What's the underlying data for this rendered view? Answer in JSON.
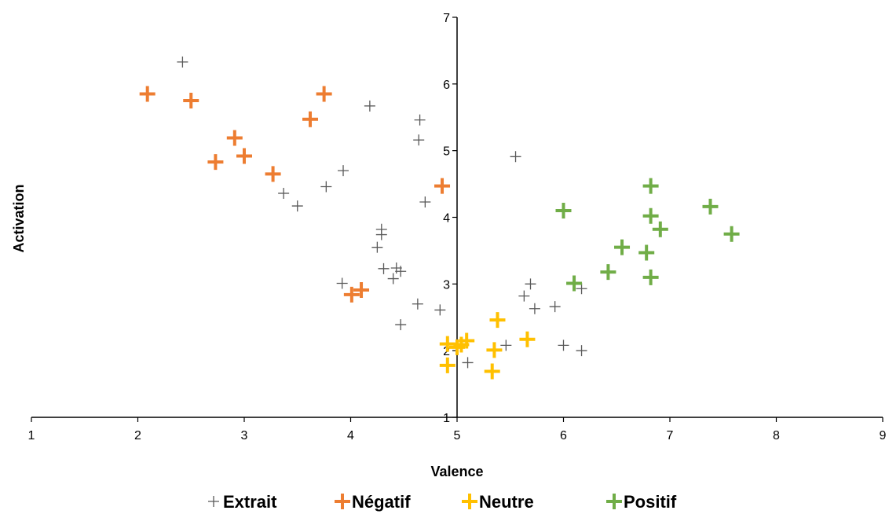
{
  "chart_data": {
    "type": "scatter",
    "title": "",
    "xlabel": "Valence",
    "ylabel": "Activation",
    "xlim": [
      1,
      9
    ],
    "ylim": [
      1,
      7
    ],
    "x_ticks": [
      "1",
      "2",
      "3",
      "4",
      "5",
      "6",
      "7",
      "8",
      "9"
    ],
    "y_ticks": [
      "1",
      "2",
      "3",
      "4",
      "5",
      "6",
      "7"
    ],
    "grid": false,
    "legend_position": "bottom",
    "series": [
      {
        "name": "Extrait",
        "color": "#595959",
        "marker": "thin-plus",
        "points": [
          [
            2.42,
            6.33
          ],
          [
            4.18,
            5.67
          ],
          [
            4.65,
            5.46
          ],
          [
            4.64,
            5.16
          ],
          [
            5.55,
            4.91
          ],
          [
            3.93,
            4.7
          ],
          [
            3.37,
            4.36
          ],
          [
            3.77,
            4.46
          ],
          [
            3.5,
            4.17
          ],
          [
            4.7,
            4.23
          ],
          [
            4.29,
            3.82
          ],
          [
            4.29,
            3.74
          ],
          [
            4.25,
            3.55
          ],
          [
            4.31,
            3.23
          ],
          [
            4.43,
            3.24
          ],
          [
            4.47,
            3.19
          ],
          [
            4.4,
            3.08
          ],
          [
            3.92,
            3.01
          ],
          [
            4.63,
            2.7
          ],
          [
            4.84,
            2.61
          ],
          [
            4.47,
            2.39
          ],
          [
            5.63,
            2.82
          ],
          [
            5.69,
            3.0
          ],
          [
            5.73,
            2.63
          ],
          [
            5.92,
            2.66
          ],
          [
            6.17,
            2.93
          ],
          [
            5.46,
            2.08
          ],
          [
            6.0,
            2.08
          ],
          [
            6.17,
            2.0
          ],
          [
            5.1,
            1.82
          ]
        ]
      },
      {
        "name": "Négatif",
        "color": "#ED7D31",
        "marker": "bold-plus",
        "points": [
          [
            2.09,
            5.85
          ],
          [
            2.5,
            5.75
          ],
          [
            3.75,
            5.85
          ],
          [
            3.62,
            5.47
          ],
          [
            2.91,
            5.19
          ],
          [
            3.0,
            4.92
          ],
          [
            2.73,
            4.83
          ],
          [
            3.27,
            4.65
          ],
          [
            4.86,
            4.47
          ],
          [
            4.1,
            2.91
          ],
          [
            4.01,
            2.84
          ]
        ]
      },
      {
        "name": "Neutre",
        "color": "#FFC000",
        "marker": "bold-plus",
        "points": [
          [
            5.38,
            2.46
          ],
          [
            4.91,
            2.1
          ],
          [
            5.0,
            2.05
          ],
          [
            5.09,
            2.15
          ],
          [
            5.04,
            2.09
          ],
          [
            5.66,
            2.17
          ],
          [
            5.35,
            2.01
          ],
          [
            4.91,
            1.78
          ],
          [
            5.33,
            1.69
          ]
        ]
      },
      {
        "name": "Positif",
        "color": "#70AD47",
        "marker": "bold-plus",
        "points": [
          [
            6.82,
            4.47
          ],
          [
            6.0,
            4.1
          ],
          [
            7.38,
            4.16
          ],
          [
            6.82,
            4.02
          ],
          [
            6.91,
            3.82
          ],
          [
            7.58,
            3.75
          ],
          [
            6.55,
            3.55
          ],
          [
            6.78,
            3.47
          ],
          [
            6.42,
            3.18
          ],
          [
            6.1,
            3.01
          ],
          [
            6.82,
            3.1
          ]
        ]
      }
    ]
  }
}
